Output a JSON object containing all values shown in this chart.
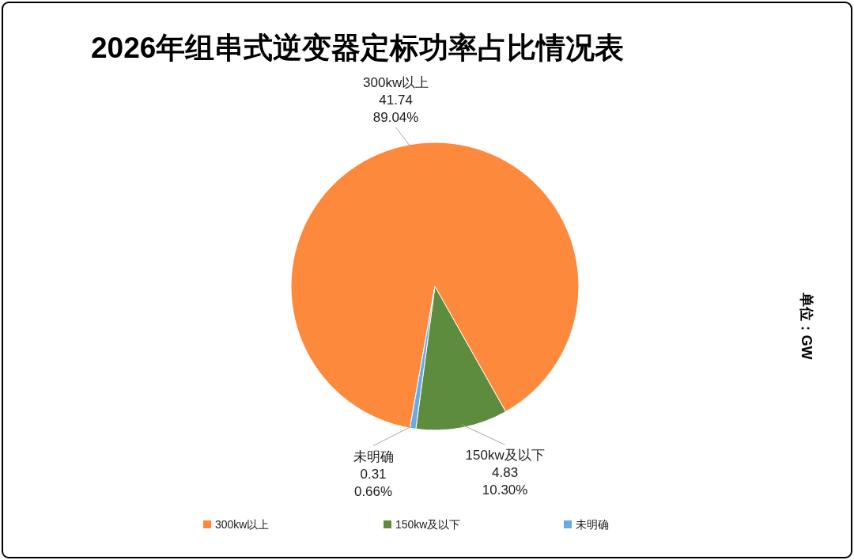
{
  "chart_data": {
    "type": "pie",
    "title": "2026年组串式逆变器定标功率占比情况表",
    "categories": [
      "300kw以上",
      "150kw及以下",
      "未明确"
    ],
    "values": [
      41.74,
      4.83,
      0.31
    ],
    "colors": [
      "#fd8a3c",
      "#5e8c3e",
      "#6aaae4"
    ],
    "value_labels": [
      "41.74\n89.04%",
      "4.83\n10.30%",
      "0.31\n0.66%"
    ],
    "legend": "bottom",
    "annotations": [
      "单位：GW"
    ]
  }
}
